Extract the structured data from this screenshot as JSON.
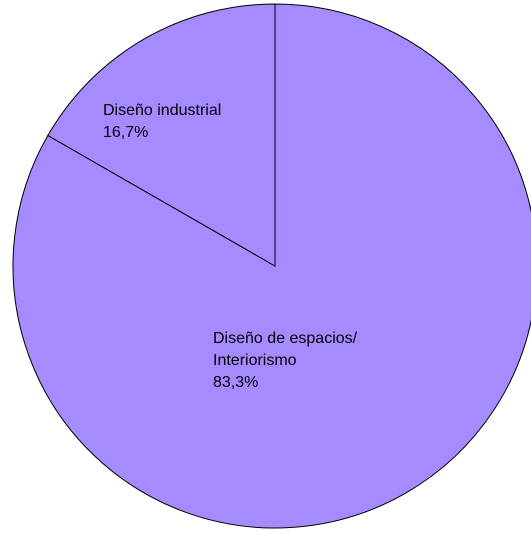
{
  "chart_data": {
    "type": "pie",
    "slices": [
      {
        "label_lines": [
          "Diseño de espacios/",
          "Interiorismo"
        ],
        "percent_label": "83,3%",
        "value": 83.3,
        "color": "#a68aff"
      },
      {
        "label_lines": [
          "Diseño industrial"
        ],
        "percent_label": "16,7%",
        "value": 16.7,
        "color": "#a68aff"
      }
    ],
    "start_angle_deg": 0,
    "direction": "clockwise"
  }
}
